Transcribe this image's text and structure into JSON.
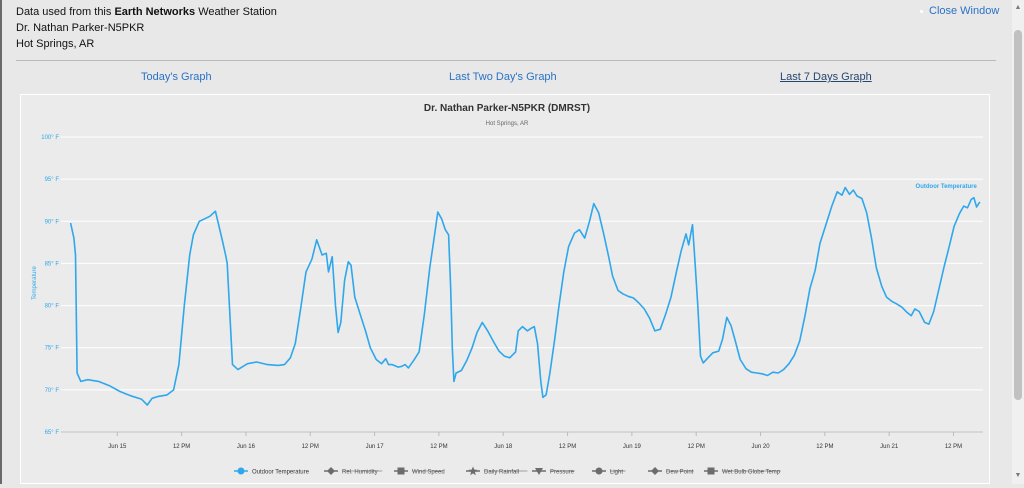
{
  "header": {
    "line1_prefix": "Data used from this ",
    "line1_bold": "Earth Networks",
    "line1_suffix": " Weather Station",
    "station_name": "Dr. Nathan Parker-N5PKR",
    "location": "Hot Springs, AR",
    "close_label": "Close Window"
  },
  "tabs": [
    {
      "label": "Today's Graph",
      "active": false
    },
    {
      "label": "Last Two Day's Graph",
      "active": false
    },
    {
      "label": "Last 7 Days Graph",
      "active": true
    }
  ],
  "chart_data": {
    "type": "line",
    "title": "Dr. Nathan Parker-N5PKR (DMRST)",
    "subtitle": "Hot Springs, AR",
    "ylabel": "Temperature",
    "ylim": [
      65,
      100
    ],
    "y_ticks": [
      "65° F",
      "70° F",
      "75° F",
      "80° F",
      "85° F",
      "90° F",
      "95° F",
      "100° F"
    ],
    "x_ticks": [
      "Jun 15",
      "12 PM",
      "Jun 16",
      "12 PM",
      "Jun 17",
      "12 PM",
      "Jun 18",
      "12 PM",
      "Jun 19",
      "12 PM",
      "Jun 20",
      "12 PM",
      "Jun 21",
      "12 PM"
    ],
    "x_tick_hours": [
      24,
      36,
      48,
      60,
      72,
      84,
      96,
      108,
      120,
      132,
      144,
      156,
      168,
      180
    ],
    "x_range_hours": [
      13.5,
      185.5
    ],
    "grid": true,
    "legend_position": "bottom",
    "series": [
      {
        "name": "Outdoor Temperature",
        "color": "#2ea7ec",
        "end_label": "Outdoor Temperature",
        "points": [
          [
            15.3,
            89.8
          ],
          [
            15.9,
            88
          ],
          [
            16.2,
            86
          ],
          [
            16.5,
            72
          ],
          [
            17.2,
            71
          ],
          [
            18.5,
            71.2
          ],
          [
            20.5,
            71
          ],
          [
            22.5,
            70.5
          ],
          [
            24.5,
            69.8
          ],
          [
            26.5,
            69.3
          ],
          [
            28.5,
            68.9
          ],
          [
            29.6,
            68.2
          ],
          [
            30.5,
            69
          ],
          [
            31.5,
            69.2
          ],
          [
            33.3,
            69.4
          ],
          [
            34.5,
            70
          ],
          [
            35.5,
            73
          ],
          [
            36.5,
            80
          ],
          [
            37.5,
            86
          ],
          [
            38.2,
            88.4
          ],
          [
            39.3,
            90
          ],
          [
            40.3,
            90.3
          ],
          [
            41.3,
            90.6
          ],
          [
            42.3,
            91.2
          ],
          [
            43.5,
            88
          ],
          [
            44.2,
            86
          ],
          [
            44.5,
            85
          ],
          [
            45.5,
            73
          ],
          [
            46.5,
            72.4
          ],
          [
            48.3,
            73.1
          ],
          [
            50,
            73.3
          ],
          [
            52,
            73
          ],
          [
            54,
            72.9
          ],
          [
            55.2,
            73
          ],
          [
            56.3,
            73.8
          ],
          [
            57.2,
            75.5
          ],
          [
            58.3,
            80
          ],
          [
            59.2,
            84
          ],
          [
            60.3,
            85.5
          ],
          [
            61.2,
            87.8
          ],
          [
            62.2,
            86
          ],
          [
            63,
            86.2
          ],
          [
            63.4,
            84
          ],
          [
            64.1,
            85.8
          ],
          [
            64.7,
            80
          ],
          [
            65.2,
            76.8
          ],
          [
            65.7,
            78
          ],
          [
            66.4,
            83
          ],
          [
            67.1,
            85.2
          ],
          [
            67.6,
            84.8
          ],
          [
            68.3,
            81
          ],
          [
            69.3,
            79
          ],
          [
            70.3,
            77
          ],
          [
            71.2,
            75
          ],
          [
            72.3,
            73.6
          ],
          [
            73.3,
            73.1
          ],
          [
            74.1,
            73.7
          ],
          [
            74.6,
            73
          ],
          [
            75.3,
            73
          ],
          [
            76.4,
            72.7
          ],
          [
            77.1,
            72.8
          ],
          [
            77.7,
            73
          ],
          [
            78.3,
            72.6
          ],
          [
            79.3,
            73.5
          ],
          [
            80.3,
            74.5
          ],
          [
            81.3,
            79
          ],
          [
            82.3,
            84.5
          ],
          [
            83.1,
            88
          ],
          [
            83.8,
            91.1
          ],
          [
            84.5,
            90.3
          ],
          [
            85.2,
            89
          ],
          [
            85.8,
            88.4
          ],
          [
            86.2,
            82
          ],
          [
            86.5,
            75
          ],
          [
            86.8,
            71
          ],
          [
            87.2,
            72
          ],
          [
            88.2,
            72.3
          ],
          [
            89.2,
            73.5
          ],
          [
            90.2,
            75
          ],
          [
            91.1,
            76.8
          ],
          [
            92.1,
            78
          ],
          [
            93.1,
            77
          ],
          [
            94.3,
            75.6
          ],
          [
            95.2,
            74.6
          ],
          [
            96.2,
            74
          ],
          [
            97.2,
            73.8
          ],
          [
            98.3,
            74.5
          ],
          [
            98.8,
            77
          ],
          [
            99.6,
            77.5
          ],
          [
            100.5,
            77
          ],
          [
            101.2,
            77.3
          ],
          [
            101.8,
            77.5
          ],
          [
            102.4,
            75.5
          ],
          [
            103,
            71
          ],
          [
            103.4,
            69.1
          ],
          [
            104,
            69.4
          ],
          [
            104.7,
            72
          ],
          [
            105.6,
            76
          ],
          [
            106.4,
            80
          ],
          [
            107.3,
            84
          ],
          [
            108.2,
            87
          ],
          [
            109.3,
            88.6
          ],
          [
            110.2,
            89
          ],
          [
            111.2,
            88
          ],
          [
            112.1,
            90
          ],
          [
            112.9,
            92.1
          ],
          [
            113.8,
            91
          ],
          [
            114.7,
            88.6
          ],
          [
            115.6,
            86
          ],
          [
            116.4,
            83.5
          ],
          [
            117.4,
            81.8
          ],
          [
            118.3,
            81.4
          ],
          [
            119.3,
            81.1
          ],
          [
            120.3,
            80.9
          ],
          [
            121.3,
            80.3
          ],
          [
            122.3,
            79.6
          ],
          [
            123.3,
            78.5
          ],
          [
            124.3,
            77
          ],
          [
            125.3,
            77.2
          ],
          [
            126.3,
            79
          ],
          [
            127.3,
            81
          ],
          [
            128.3,
            84
          ],
          [
            129.2,
            86.5
          ],
          [
            130.1,
            88.5
          ],
          [
            130.6,
            87.2
          ],
          [
            131.3,
            89.6
          ],
          [
            131.8,
            85
          ],
          [
            132.3,
            80
          ],
          [
            132.8,
            74
          ],
          [
            133.3,
            73.2
          ],
          [
            134.2,
            73.8
          ],
          [
            135.1,
            74.4
          ],
          [
            136.2,
            74.6
          ],
          [
            136.9,
            76
          ],
          [
            137.7,
            78.6
          ],
          [
            138.5,
            77.6
          ],
          [
            139.3,
            75.8
          ],
          [
            140.2,
            73.6
          ],
          [
            141.3,
            72.5
          ],
          [
            142.3,
            72.1
          ],
          [
            143.3,
            72
          ],
          [
            144.3,
            71.9
          ],
          [
            145.3,
            71.7
          ],
          [
            146.3,
            72.1
          ],
          [
            147.3,
            72
          ],
          [
            148.3,
            72.4
          ],
          [
            149.3,
            73.1
          ],
          [
            150.3,
            74.1
          ],
          [
            151.3,
            75.8
          ],
          [
            152.3,
            78.8
          ],
          [
            153.2,
            82
          ],
          [
            154.2,
            84.2
          ],
          [
            155.1,
            87.4
          ],
          [
            156.2,
            89.6
          ],
          [
            157.3,
            91.8
          ],
          [
            158.3,
            93.5
          ],
          [
            159.2,
            93.1
          ],
          [
            159.8,
            94
          ],
          [
            160.6,
            93.2
          ],
          [
            161.3,
            93.7
          ],
          [
            162,
            93
          ],
          [
            162.9,
            92.7
          ],
          [
            163.8,
            91
          ],
          [
            164.7,
            88
          ],
          [
            165.6,
            84.5
          ],
          [
            166.6,
            82.3
          ],
          [
            167.5,
            81
          ],
          [
            168.5,
            80.5
          ],
          [
            169.4,
            80.2
          ],
          [
            170.4,
            79.8
          ],
          [
            171.3,
            79.2
          ],
          [
            172.1,
            78.8
          ],
          [
            172.8,
            79.6
          ],
          [
            173.6,
            79.3
          ],
          [
            174.6,
            78
          ],
          [
            175.4,
            77.8
          ],
          [
            176.3,
            79.3
          ],
          [
            177.3,
            82
          ],
          [
            178.2,
            84.5
          ],
          [
            179.2,
            87
          ],
          [
            180.1,
            89.4
          ],
          [
            181.1,
            90.9
          ],
          [
            181.9,
            91.8
          ],
          [
            182.6,
            91.6
          ],
          [
            183.3,
            92.6
          ],
          [
            183.8,
            92.8
          ],
          [
            184.3,
            91.7
          ],
          [
            184.9,
            92.3
          ]
        ]
      }
    ],
    "legend": [
      {
        "label": "Outdoor Temperature",
        "active": true,
        "symbol": "circle"
      },
      {
        "label": "Rel. Humidity",
        "active": false,
        "symbol": "diamond"
      },
      {
        "label": "Wind Speed",
        "active": false,
        "symbol": "square"
      },
      {
        "label": "Daily Rainfall",
        "active": false,
        "symbol": "star"
      },
      {
        "label": "Pressure",
        "active": false,
        "symbol": "triangle-down"
      },
      {
        "label": "Light",
        "active": false,
        "symbol": "circle"
      },
      {
        "label": "Dew Point",
        "active": false,
        "symbol": "diamond"
      },
      {
        "label": "Wet Bulb Globe Temp",
        "active": false,
        "symbol": "square"
      }
    ]
  }
}
